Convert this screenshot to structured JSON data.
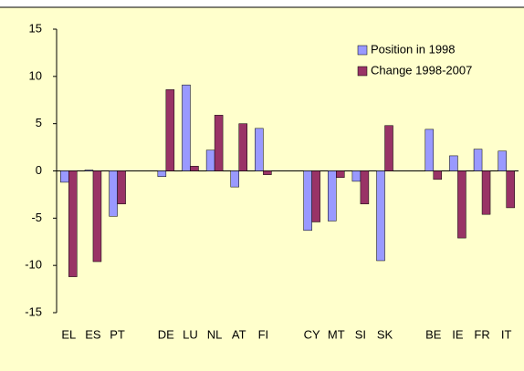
{
  "chart_data": {
    "type": "bar",
    "categories": [
      "EL",
      "ES",
      "PT",
      null,
      "DE",
      "LU",
      "NL",
      "AT",
      "FI",
      null,
      "CY",
      "MT",
      "SI",
      "SK",
      null,
      "BE",
      "IE",
      "FR",
      "IT"
    ],
    "series": [
      {
        "name": "Position in 1998",
        "color": "#9999ff",
        "values": [
          -1.2,
          0.1,
          -4.8,
          null,
          -0.6,
          9.1,
          2.2,
          -1.7,
          4.5,
          null,
          -6.3,
          -5.3,
          -1.1,
          -9.5,
          null,
          4.4,
          1.6,
          2.3,
          2.1
        ]
      },
      {
        "name": "Change 1998-2007",
        "color": "#993366",
        "values": [
          -11.2,
          -9.6,
          -3.5,
          null,
          8.6,
          0.5,
          5.9,
          5.0,
          -0.4,
          null,
          -5.4,
          -0.7,
          -3.5,
          4.8,
          null,
          -0.9,
          -7.1,
          -4.6,
          -3.9
        ]
      }
    ],
    "ylim": [
      -15,
      15
    ],
    "yticks": [
      -15,
      -10,
      -5,
      0,
      5,
      10,
      15
    ],
    "grid": false,
    "legend": "top-right"
  }
}
